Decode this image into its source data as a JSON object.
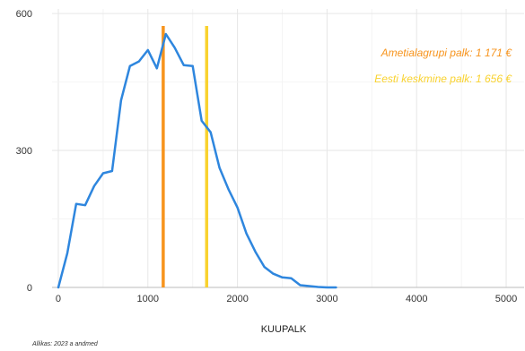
{
  "chart_data": {
    "type": "line",
    "title": "",
    "xlabel": "KUUPALK",
    "ylabel": "",
    "xlim": [
      -70,
      5200
    ],
    "ylim": [
      0,
      610
    ],
    "x_ticks": [
      0,
      1000,
      2000,
      3000,
      4000,
      5000
    ],
    "y_ticks": [
      0,
      300,
      600
    ],
    "x_tick_labels": [
      "0",
      "1000",
      "2000",
      "3000",
      "4000",
      "5000"
    ],
    "y_tick_labels": [
      "0",
      "300",
      "600"
    ],
    "grid": true,
    "legend": "none",
    "series": [
      {
        "color": "#2e86de",
        "x": [
          0,
          100,
          200,
          300,
          400,
          500,
          600,
          700,
          800,
          900,
          1000,
          1100,
          1200,
          1300,
          1400,
          1500,
          1600,
          1700,
          1800,
          1900,
          2000,
          2100,
          2200,
          2300,
          2400,
          2500,
          2600,
          2700,
          2800,
          2900,
          3000,
          3100
        ],
        "y": [
          0,
          75,
          183,
          180,
          222,
          250,
          255,
          410,
          485,
          495,
          520,
          480,
          555,
          525,
          487,
          485,
          365,
          340,
          262,
          215,
          175,
          118,
          78,
          45,
          30,
          22,
          20,
          5,
          3,
          1,
          0,
          0
        ]
      }
    ],
    "reference_lines": [
      {
        "x": 1171,
        "color": "#f7941d",
        "label": "Ametialagrupi palk: 1 171 €"
      },
      {
        "x": 1656,
        "color": "#f9d22e",
        "label": "Eesti keskmine palk: 1 656 €"
      }
    ],
    "source": "Allikas: 2023 a andmed"
  }
}
